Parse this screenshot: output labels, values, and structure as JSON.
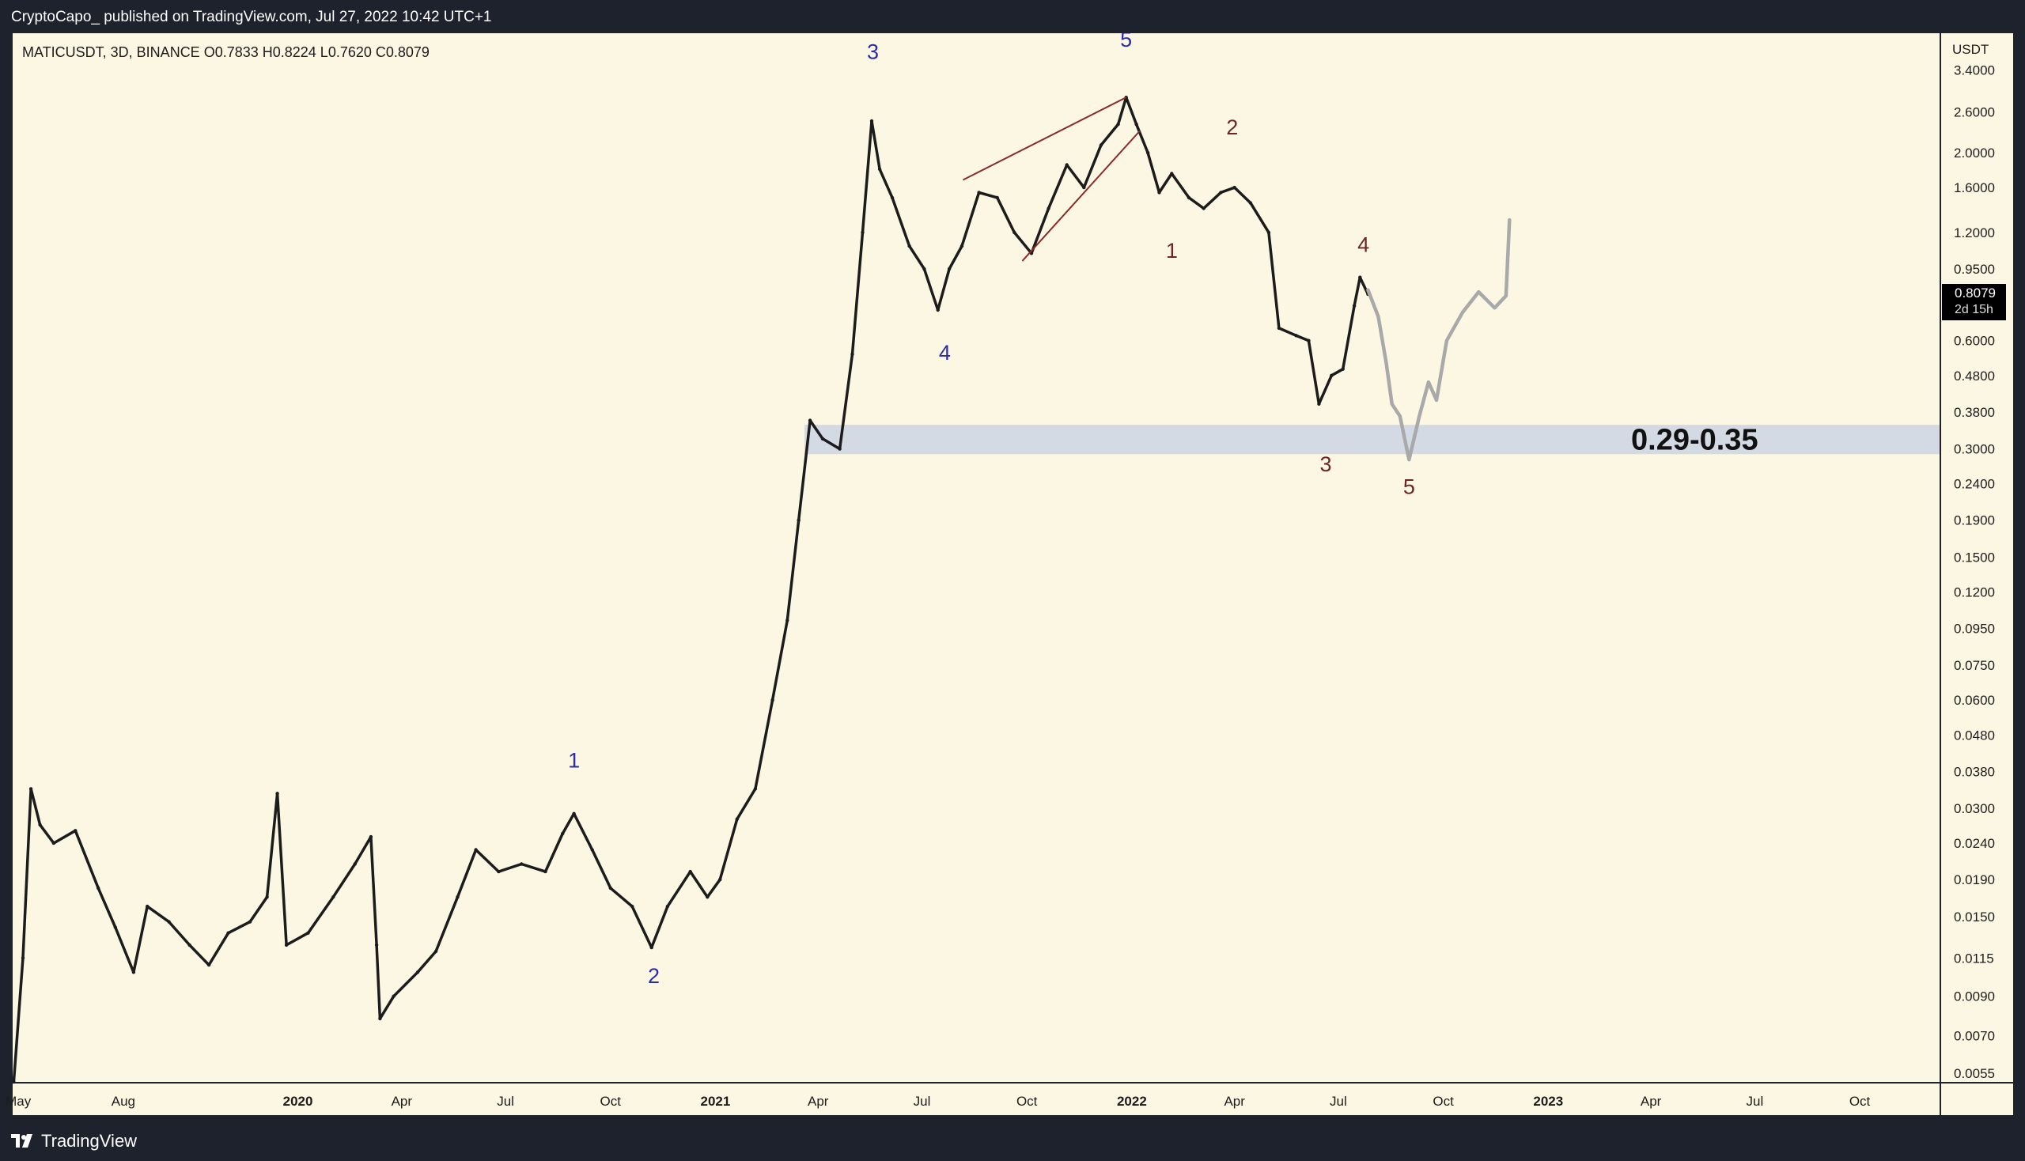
{
  "header": {
    "publisher": "CryptoCapo_ published on TradingView.com, Jul 27, 2022 10:42 UTC+1"
  },
  "footer": {
    "brand": "TradingView"
  },
  "chart_data": {
    "type": "candlestick",
    "symbol_line": "MATICUSDT, 3D, BINANCE  O0.7833  H0.8224  L0.7620  C0.8079",
    "currency": "USDT",
    "y_scale": "log",
    "ylim": [
      0.0052,
      4.3
    ],
    "y_ticks": [
      "3.4000",
      "2.6000",
      "2.0000",
      "1.6000",
      "1.2000",
      "0.9500",
      "0.6000",
      "0.4800",
      "0.3800",
      "0.3000",
      "0.2400",
      "0.1900",
      "0.1500",
      "0.1200",
      "0.0950",
      "0.0750",
      "0.0600",
      "0.0480",
      "0.0380",
      "0.0300",
      "0.0240",
      "0.0190",
      "0.0150",
      "0.0115",
      "0.0090",
      "0.0070",
      "0.0055"
    ],
    "x_range": [
      "2019-04-26",
      "2023-12-10"
    ],
    "x_ticks": [
      {
        "date": "2019-05-01",
        "label": "May",
        "bold": false
      },
      {
        "date": "2019-08-01",
        "label": "Aug",
        "bold": false
      },
      {
        "date": "2020-01-01",
        "label": "2020",
        "bold": true
      },
      {
        "date": "2020-04-01",
        "label": "Apr",
        "bold": false
      },
      {
        "date": "2020-07-01",
        "label": "Jul",
        "bold": false
      },
      {
        "date": "2020-10-01",
        "label": "Oct",
        "bold": false
      },
      {
        "date": "2021-01-01",
        "label": "2021",
        "bold": true
      },
      {
        "date": "2021-04-01",
        "label": "Apr",
        "bold": false
      },
      {
        "date": "2021-07-01",
        "label": "Jul",
        "bold": false
      },
      {
        "date": "2021-10-01",
        "label": "Oct",
        "bold": false
      },
      {
        "date": "2022-01-01",
        "label": "2022",
        "bold": true
      },
      {
        "date": "2022-04-01",
        "label": "Apr",
        "bold": false
      },
      {
        "date": "2022-07-01",
        "label": "Jul",
        "bold": false
      },
      {
        "date": "2022-10-01",
        "label": "Oct",
        "bold": false
      },
      {
        "date": "2023-01-01",
        "label": "2023",
        "bold": true
      },
      {
        "date": "2023-04-01",
        "label": "Apr",
        "bold": false
      },
      {
        "date": "2023-07-01",
        "label": "Jul",
        "bold": false
      },
      {
        "date": "2023-10-01",
        "label": "Oct",
        "bold": false
      }
    ],
    "last_price": {
      "value": 0.8079,
      "label": "0.8079",
      "countdown": "2d 15h"
    },
    "price_path": [
      [
        "2019-04-27",
        0.0052
      ],
      [
        "2019-05-05",
        0.0115
      ],
      [
        "2019-05-12",
        0.034
      ],
      [
        "2019-05-20",
        0.027
      ],
      [
        "2019-06-01",
        0.024
      ],
      [
        "2019-06-20",
        0.026
      ],
      [
        "2019-07-10",
        0.018
      ],
      [
        "2019-07-25",
        0.014
      ],
      [
        "2019-08-10",
        0.0105
      ],
      [
        "2019-08-22",
        0.016
      ],
      [
        "2019-09-10",
        0.0145
      ],
      [
        "2019-09-28",
        0.0125
      ],
      [
        "2019-10-15",
        0.011
      ],
      [
        "2019-11-01",
        0.0135
      ],
      [
        "2019-11-20",
        0.0145
      ],
      [
        "2019-12-05",
        0.017
      ],
      [
        "2019-12-14",
        0.033
      ],
      [
        "2019-12-22",
        0.0125
      ],
      [
        "2020-01-10",
        0.0135
      ],
      [
        "2020-02-01",
        0.017
      ],
      [
        "2020-02-20",
        0.021
      ],
      [
        "2020-03-05",
        0.025
      ],
      [
        "2020-03-10",
        0.0125
      ],
      [
        "2020-03-13",
        0.0078
      ],
      [
        "2020-03-25",
        0.009
      ],
      [
        "2020-04-15",
        0.0105
      ],
      [
        "2020-05-01",
        0.012
      ],
      [
        "2020-05-20",
        0.017
      ],
      [
        "2020-06-05",
        0.023
      ],
      [
        "2020-06-25",
        0.02
      ],
      [
        "2020-07-15",
        0.021
      ],
      [
        "2020-08-05",
        0.02
      ],
      [
        "2020-08-20",
        0.0255
      ],
      [
        "2020-08-30",
        0.029
      ],
      [
        "2020-09-15",
        0.023
      ],
      [
        "2020-10-01",
        0.018
      ],
      [
        "2020-10-20",
        0.016
      ],
      [
        "2020-11-06",
        0.0123
      ],
      [
        "2020-11-20",
        0.016
      ],
      [
        "2020-12-10",
        0.02
      ],
      [
        "2020-12-25",
        0.017
      ],
      [
        "2021-01-05",
        0.019
      ],
      [
        "2021-01-20",
        0.028
      ],
      [
        "2021-02-05",
        0.034
      ],
      [
        "2021-02-20",
        0.06
      ],
      [
        "2021-03-05",
        0.1
      ],
      [
        "2021-03-15",
        0.19
      ],
      [
        "2021-03-25",
        0.36
      ],
      [
        "2021-04-05",
        0.32
      ],
      [
        "2021-04-20",
        0.3
      ],
      [
        "2021-05-01",
        0.55
      ],
      [
        "2021-05-10",
        1.2
      ],
      [
        "2021-05-18",
        2.45
      ],
      [
        "2021-05-25",
        1.8
      ],
      [
        "2021-06-05",
        1.5
      ],
      [
        "2021-06-20",
        1.1
      ],
      [
        "2021-07-03",
        0.95
      ],
      [
        "2021-07-15",
        0.73
      ],
      [
        "2021-07-25",
        0.95
      ],
      [
        "2021-08-05",
        1.1
      ],
      [
        "2021-08-20",
        1.55
      ],
      [
        "2021-09-05",
        1.5
      ],
      [
        "2021-09-20",
        1.2
      ],
      [
        "2021-10-05",
        1.05
      ],
      [
        "2021-10-20",
        1.4
      ],
      [
        "2021-11-05",
        1.85
      ],
      [
        "2021-11-20",
        1.6
      ],
      [
        "2021-12-05",
        2.1
      ],
      [
        "2021-12-20",
        2.4
      ],
      [
        "2021-12-27",
        2.85
      ],
      [
        "2022-01-05",
        2.4
      ],
      [
        "2022-01-15",
        2.0
      ],
      [
        "2022-01-25",
        1.55
      ],
      [
        "2022-02-05",
        1.75
      ],
      [
        "2022-02-20",
        1.5
      ],
      [
        "2022-03-05",
        1.4
      ],
      [
        "2022-03-20",
        1.55
      ],
      [
        "2022-04-01",
        1.6
      ],
      [
        "2022-04-15",
        1.45
      ],
      [
        "2022-05-01",
        1.2
      ],
      [
        "2022-05-10",
        0.65
      ],
      [
        "2022-05-25",
        0.62
      ],
      [
        "2022-06-05",
        0.6
      ],
      [
        "2022-06-14",
        0.4
      ],
      [
        "2022-06-25",
        0.48
      ],
      [
        "2022-07-05",
        0.5
      ],
      [
        "2022-07-15",
        0.75
      ],
      [
        "2022-07-20",
        0.9
      ],
      [
        "2022-07-27",
        0.8079
      ]
    ],
    "projection_path": [
      [
        "2022-07-27",
        0.83
      ],
      [
        "2022-08-05",
        0.7
      ],
      [
        "2022-08-12",
        0.52
      ],
      [
        "2022-08-17",
        0.4
      ],
      [
        "2022-08-24",
        0.37
      ],
      [
        "2022-09-01",
        0.28
      ],
      [
        "2022-09-10",
        0.37
      ],
      [
        "2022-09-18",
        0.46
      ],
      [
        "2022-09-25",
        0.41
      ],
      [
        "2022-10-04",
        0.6
      ],
      [
        "2022-10-18",
        0.72
      ],
      [
        "2022-11-01",
        0.82
      ],
      [
        "2022-11-15",
        0.74
      ],
      [
        "2022-11-25",
        0.8
      ],
      [
        "2022-11-28",
        1.3
      ]
    ],
    "wedge": {
      "upper": [
        [
          "2021-08-06",
          1.68
        ],
        [
          "2021-12-27",
          2.85
        ]
      ],
      "lower": [
        [
          "2021-09-27",
          1.0
        ],
        [
          "2022-01-08",
          2.3
        ]
      ]
    },
    "support_zone": {
      "low": 0.29,
      "high": 0.35,
      "label": "0.29-0.35"
    },
    "wave_labels": [
      {
        "text": "1",
        "date": "2020-08-30",
        "price": 0.039,
        "color": "#2c2ca8"
      },
      {
        "text": "2",
        "date": "2020-11-08",
        "price": 0.0098,
        "color": "#2c2ca8"
      },
      {
        "text": "3",
        "date": "2021-05-19",
        "price": 3.65,
        "color": "#2c2ca8"
      },
      {
        "text": "4",
        "date": "2021-07-21",
        "price": 0.53,
        "color": "#2c2ca8"
      },
      {
        "text": "5",
        "date": "2021-12-27",
        "price": 3.95,
        "color": "#2c2ca8"
      },
      {
        "text": "1",
        "date": "2022-02-05",
        "price": 1.02,
        "color": "#6e2525"
      },
      {
        "text": "2",
        "date": "2022-03-30",
        "price": 2.25,
        "color": "#6e2525"
      },
      {
        "text": "3",
        "date": "2022-06-20",
        "price": 0.26,
        "color": "#6e2525"
      },
      {
        "text": "4",
        "date": "2022-07-23",
        "price": 1.06,
        "color": "#6e2525"
      },
      {
        "text": "5",
        "date": "2022-09-01",
        "price": 0.225,
        "color": "#6e2525"
      }
    ],
    "colors": {
      "background": "#fbf7e3",
      "price": "#1c1c1c",
      "projection": "#a9a9a9",
      "wedge": "#8b2a2a",
      "zone": "#d4dae4",
      "axis_bg": "#fbf7e3",
      "axis_text": "#1c1c1c"
    }
  }
}
